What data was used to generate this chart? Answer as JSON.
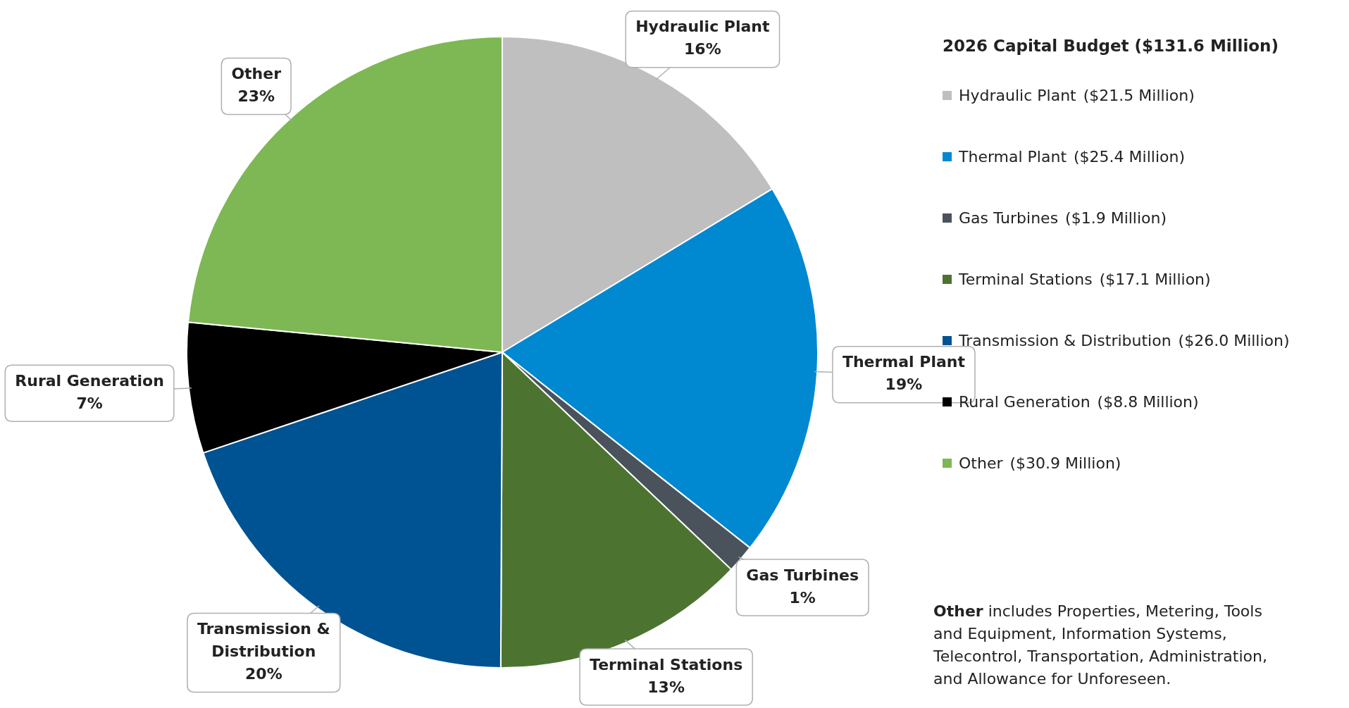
{
  "chart_data": {
    "type": "pie",
    "legend_title": "2026 Capital Budget ($131.6 Million)",
    "legend": "right",
    "categories": [
      "Hydraulic Plant",
      "Thermal Plant",
      "Gas Turbines",
      "Terminal Stations",
      "Transmission & Distribution",
      "Rural Generation",
      "Other"
    ],
    "values": [
      21.5,
      25.4,
      1.9,
      17.1,
      26.0,
      8.8,
      30.9
    ],
    "value_labels": [
      "($21.5 Million)",
      "($25.4 Million)",
      "($1.9 Million)",
      "($17.1 Million)",
      "($26.0 Million)",
      "($8.8 Million)",
      "($30.9 Million)"
    ],
    "colors": [
      "#bfbfbf",
      "#0088d1",
      "#4a525c",
      "#4c7430",
      "#005393",
      "#000000",
      "#7db854"
    ],
    "annotations": [
      {
        "text": "Hydraulic Plant",
        "x": "Hydraulic Plant"
      },
      {
        "text": "16%",
        "x": "Hydraulic Plant"
      },
      {
        "text": "Thermal Plant",
        "x": "Thermal Plant"
      },
      {
        "text": "19%",
        "x": "Thermal Plant"
      },
      {
        "text": "Gas Turbines",
        "x": "Gas Turbines"
      },
      {
        "text": "1%",
        "x": "Gas Turbines"
      },
      {
        "text": "Terminal Stations",
        "x": "Terminal Stations"
      },
      {
        "text": "13%",
        "x": "Terminal Stations"
      },
      {
        "text": "Transmission &",
        "x": "Transmission & Distribution"
      },
      {
        "text": "Distribution",
        "x": "Transmission & Distribution"
      },
      {
        "text": "20%",
        "x": "Transmission & Distribution"
      },
      {
        "text": "Rural Generation",
        "x": "Rural Generation"
      },
      {
        "text": "7%",
        "x": "Rural Generation"
      },
      {
        "text": "Other",
        "x": "Other"
      },
      {
        "text": "23%",
        "x": "Other"
      },
      "Other includes Properties, Metering, Tools and Equipment, Information Systems, Telecontrol, Transportation, Administration, and Allowance for Unforeseen."
    ]
  }
}
